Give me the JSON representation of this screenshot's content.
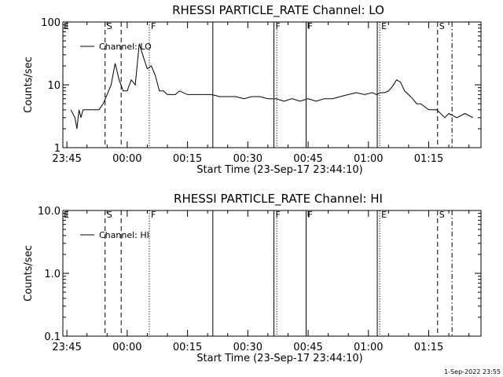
{
  "chart_data": [
    {
      "type": "line",
      "title": "RHESSI PARTICLE_RATE Channel: LO",
      "xlabel": "Start Time (23-Sep-17 23:44:10)",
      "ylabel": "Counts/sec",
      "yscale": "log",
      "ylim": [
        1,
        100
      ],
      "yticks": [
        1,
        10,
        100
      ],
      "ytick_labels": [
        "1",
        "10",
        "100"
      ],
      "xlim_minutes": [
        -1,
        103
      ],
      "x_ticks_minutes": [
        0,
        15,
        30,
        45,
        60,
        75,
        90
      ],
      "x_tick_labels": [
        "23:45",
        "00:00",
        "00:15",
        "00:30",
        "00:45",
        "01:00",
        "01:15"
      ],
      "grid": false,
      "legend_position": "top-left",
      "series": [
        {
          "name": "Channel: LO",
          "x_minutes": [
            1,
            2,
            2.5,
            3,
            3.5,
            4,
            5,
            6,
            7,
            8,
            9,
            10,
            11,
            12,
            13,
            14,
            15,
            16,
            17,
            18,
            19,
            20,
            21,
            22,
            23,
            24,
            25,
            26,
            27,
            28,
            30,
            32,
            34,
            36,
            38,
            40,
            42,
            44,
            46,
            48,
            50,
            52,
            54,
            56,
            58,
            60,
            62,
            64,
            66,
            68,
            70,
            72,
            74,
            76,
            77,
            78,
            79,
            80,
            81,
            82,
            83,
            84,
            85,
            86,
            87,
            88,
            90,
            92,
            94,
            95,
            97,
            99,
            101
          ],
          "values": [
            4,
            3,
            2,
            4,
            3,
            4,
            4,
            4,
            4,
            4,
            5,
            7,
            10,
            22,
            12,
            8,
            8,
            12,
            10,
            45,
            28,
            18,
            20,
            14,
            8,
            8,
            7,
            7,
            7,
            8,
            7,
            7,
            7,
            7,
            6.5,
            6.5,
            6.5,
            6,
            6.5,
            6.5,
            6,
            6,
            5.5,
            6,
            5.5,
            6,
            5.5,
            6,
            6,
            6.5,
            7,
            7.5,
            7,
            7.5,
            7,
            7.5,
            7.5,
            8,
            9.5,
            12,
            11,
            8,
            7,
            6,
            5,
            5,
            4,
            4,
            3,
            3.5,
            3,
            3.5,
            3
          ]
        }
      ],
      "markers": [
        {
          "x_minutes": 9.5,
          "label": "S",
          "style": "dashed"
        },
        {
          "x_minutes": 13.5,
          "label": "",
          "style": "dashed"
        },
        {
          "x_minutes": 20.5,
          "label": "F",
          "style": "dotted"
        },
        {
          "x_minutes": 36.3,
          "label": "",
          "style": "solid"
        },
        {
          "x_minutes": 51.5,
          "label": "F",
          "style": "solid"
        },
        {
          "x_minutes": 52.2,
          "label": "",
          "style": "dotted"
        },
        {
          "x_minutes": 59.5,
          "label": "F",
          "style": "solid"
        },
        {
          "x_minutes": 77.2,
          "label": "",
          "style": "solid"
        },
        {
          "x_minutes": 77.8,
          "label": "E",
          "style": "dotted"
        },
        {
          "x_minutes": 92.2,
          "label": "S",
          "style": "dashed"
        },
        {
          "x_minutes": 95.8,
          "label": "",
          "style": "dash-dot"
        }
      ],
      "edge_label": "E"
    },
    {
      "type": "line",
      "title": "RHESSI PARTICLE_RATE Channel: HI",
      "xlabel": "Start Time (23-Sep-17 23:44:10)",
      "ylabel": "Counts/sec",
      "yscale": "log",
      "ylim": [
        0.1,
        10
      ],
      "yticks": [
        0.1,
        1,
        10
      ],
      "ytick_labels": [
        "0.1",
        "1.0",
        "10.0"
      ],
      "xlim_minutes": [
        -1,
        103
      ],
      "x_ticks_minutes": [
        0,
        15,
        30,
        45,
        60,
        75,
        90
      ],
      "x_tick_labels": [
        "23:45",
        "00:00",
        "00:15",
        "00:30",
        "00:45",
        "01:00",
        "01:15"
      ],
      "grid": false,
      "legend_position": "top-left",
      "series": [
        {
          "name": "Channel: HI",
          "x_minutes": [],
          "values": []
        }
      ],
      "markers": [
        {
          "x_minutes": 9.5,
          "label": "S",
          "style": "dashed"
        },
        {
          "x_minutes": 13.5,
          "label": "",
          "style": "dashed"
        },
        {
          "x_minutes": 20.5,
          "label": "F",
          "style": "dotted"
        },
        {
          "x_minutes": 36.3,
          "label": "",
          "style": "solid"
        },
        {
          "x_minutes": 51.5,
          "label": "F",
          "style": "solid"
        },
        {
          "x_minutes": 52.2,
          "label": "",
          "style": "dotted"
        },
        {
          "x_minutes": 59.5,
          "label": "F",
          "style": "solid"
        },
        {
          "x_minutes": 77.2,
          "label": "",
          "style": "solid"
        },
        {
          "x_minutes": 77.8,
          "label": "E",
          "style": "dotted"
        },
        {
          "x_minutes": 92.2,
          "label": "S",
          "style": "dashed"
        },
        {
          "x_minutes": 95.8,
          "label": "",
          "style": "dash-dot"
        }
      ],
      "edge_label": "E"
    }
  ],
  "footer": {
    "timestamp": "1-Sep-2022 23:55"
  }
}
